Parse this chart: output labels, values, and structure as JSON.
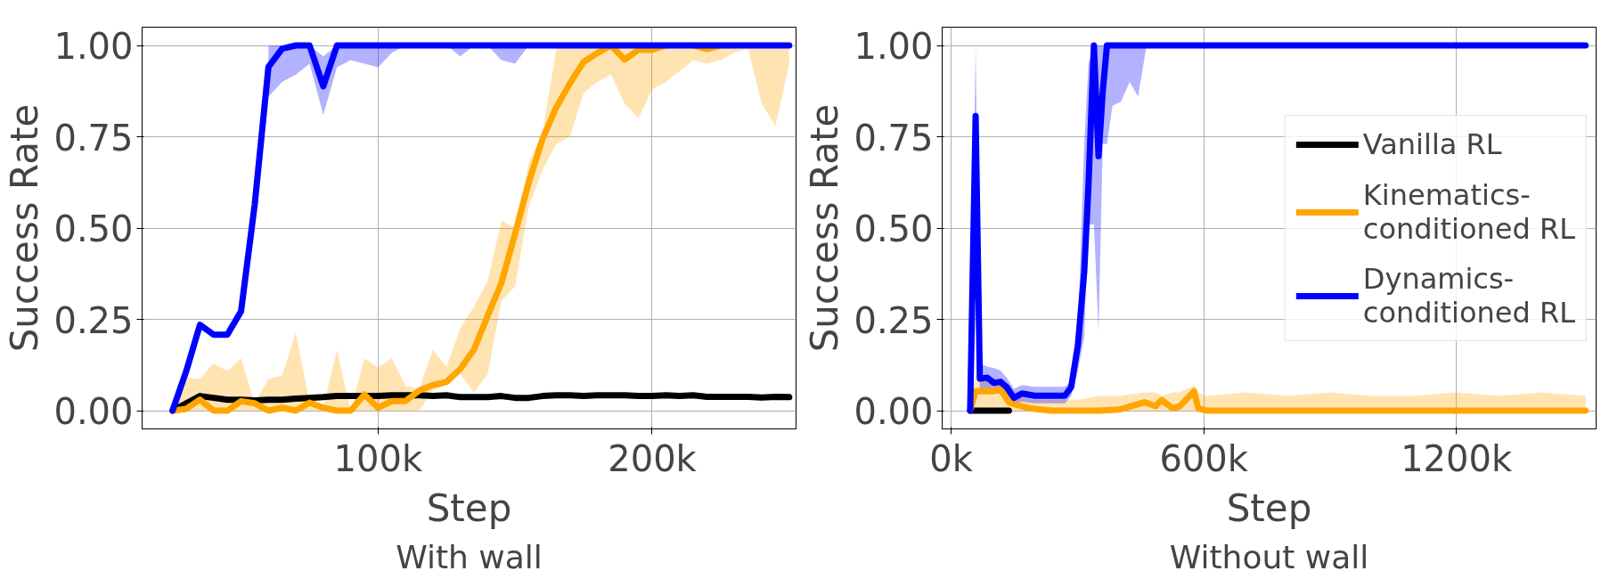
{
  "chart_data": [
    {
      "type": "line",
      "title": "With wall",
      "xlabel": "Step",
      "ylabel": "Success Rate",
      "grid": true,
      "legend": false,
      "xlim": [
        13900,
        252500
      ],
      "ylim": [
        -0.05,
        1.05
      ],
      "xticks": [
        {
          "value": 100000,
          "label": "100k"
        },
        {
          "value": 200000,
          "label": "200k"
        }
      ],
      "yticks": [
        {
          "value": 0,
          "label": "0.00"
        },
        {
          "value": 0.25,
          "label": "0.25"
        },
        {
          "value": 0.5,
          "label": "0.50"
        },
        {
          "value": 0.75,
          "label": "0.75"
        },
        {
          "value": 1,
          "label": "1.00"
        }
      ],
      "x": [
        25000,
        30000,
        35000,
        40000,
        45000,
        50000,
        55000,
        60000,
        65000,
        70000,
        75000,
        80000,
        85000,
        90000,
        95000,
        100000,
        105000,
        110000,
        115000,
        120000,
        125000,
        130000,
        135000,
        140000,
        145000,
        150000,
        155000,
        160000,
        165000,
        170000,
        175000,
        180000,
        185000,
        190000,
        195000,
        200000,
        205000,
        210000,
        215000,
        220000,
        225000,
        230000,
        235000,
        240000,
        245000,
        250000
      ],
      "series": [
        {
          "color": "#000000",
          "values": [
            0,
            0.02,
            0.04,
            0.035,
            0.03,
            0.03,
            0.028,
            0.03,
            0.03,
            0.033,
            0.035,
            0.037,
            0.04,
            0.04,
            0.04,
            0.04,
            0.042,
            0.042,
            0.042,
            0.04,
            0.042,
            0.037,
            0.037,
            0.037,
            0.04,
            0.035,
            0.035,
            0.04,
            0.042,
            0.042,
            0.04,
            0.042,
            0.042,
            0.042,
            0.04,
            0.04,
            0.042,
            0.04,
            0.042,
            0.038,
            0.038,
            0.038,
            0.038,
            0.036,
            0.038,
            0.037
          ]
        },
        {
          "color": "#ffa500",
          "values": [
            0,
            0.005,
            0.03,
            0,
            0,
            0.026,
            0.02,
            0,
            0.008,
            0,
            0.022,
            0.008,
            0,
            0,
            0.044,
            0.008,
            0.026,
            0.026,
            0.055,
            0.07,
            0.079,
            0.114,
            0.167,
            0.26,
            0.35,
            0.485,
            0.626,
            0.744,
            0.83,
            0.896,
            0.955,
            0.979,
            1,
            0.961,
            0.988,
            0.988,
            1,
            null,
            1,
            0.99,
            1,
            null,
            null,
            null,
            null,
            null
          ],
          "lower": [
            0,
            0,
            0,
            0,
            0,
            0,
            0,
            0,
            0,
            0,
            0,
            0,
            0,
            0,
            0,
            0,
            0,
            0,
            0,
            0.055,
            0.07,
            0.1,
            0.05,
            0.1,
            0.3,
            0.34,
            0.56,
            0.66,
            0.73,
            0.75,
            0.87,
            0.9,
            0.92,
            0.84,
            0.8,
            0.88,
            0.9,
            0.93,
            0.96,
            0.95,
            0.96,
            0.98,
            0.99,
            0.84,
            0.78,
            0.95
          ],
          "upper": [
            0,
            0.09,
            0.087,
            0.13,
            0.108,
            0.143,
            0.02,
            0.087,
            0.096,
            0.214,
            0.022,
            0.008,
            0.167,
            0,
            0.143,
            0.118,
            0.143,
            0.067,
            0.061,
            0.167,
            0.12,
            0.226,
            0.285,
            0.355,
            0.52,
            0.5,
            0.68,
            0.76,
            0.99,
            1,
            1,
            1,
            1,
            1,
            1,
            1,
            1,
            1,
            1,
            1,
            1,
            1,
            1,
            1,
            1,
            1
          ]
        },
        {
          "color": "#0000ff",
          "values": [
            0,
            0.108,
            0.235,
            0.208,
            0.208,
            0.272,
            0.565,
            0.941,
            0.991,
            1,
            1,
            0.888,
            1,
            1,
            1,
            1,
            1,
            1,
            1,
            1,
            1,
            1,
            1,
            1,
            1,
            1,
            1,
            1,
            1,
            1,
            1,
            1,
            1,
            1,
            1,
            1,
            1,
            1,
            1,
            1,
            1,
            1,
            1,
            1,
            1,
            1
          ],
          "lower": [
            null,
            null,
            null,
            null,
            null,
            null,
            null,
            0.86,
            0.9,
            0.92,
            0.95,
            0.81,
            0.94,
            0.96,
            0.95,
            0.94,
            0.98,
            1,
            1,
            1,
            1,
            0.97,
            1,
            1,
            0.96,
            0.95,
            1,
            1,
            1,
            1,
            1,
            1,
            1,
            1,
            1,
            1,
            1,
            1,
            1,
            1,
            1,
            1,
            1,
            1,
            1,
            1
          ],
          "upper": [
            null,
            null,
            null,
            null,
            null,
            null,
            null,
            1,
            1,
            1,
            1,
            0.97,
            1,
            1,
            1,
            1,
            1,
            1,
            1,
            1,
            1,
            1,
            1,
            1,
            1,
            1,
            1,
            1,
            1,
            1,
            1,
            1,
            1,
            1,
            1,
            1,
            1,
            1,
            1,
            1,
            1,
            1,
            1,
            1,
            1,
            1
          ]
        }
      ]
    },
    {
      "type": "line",
      "title": "Without wall",
      "xlabel": "Step",
      "ylabel": "Success Rate",
      "grid": true,
      "legend": "center right",
      "xlim": [
        -21500,
        1532000
      ],
      "ylim": [
        -0.05,
        1.05
      ],
      "xticks": [
        {
          "value": 0,
          "label": "0k"
        },
        {
          "value": 600000,
          "label": "600k"
        },
        {
          "value": 1200000,
          "label": "1200k"
        }
      ],
      "yticks": [
        {
          "value": 0,
          "label": "0.00"
        },
        {
          "value": 0.25,
          "label": "0.25"
        },
        {
          "value": 0.5,
          "label": "0.50"
        },
        {
          "value": 0.75,
          "label": "0.75"
        },
        {
          "value": 1,
          "label": "1.00"
        }
      ],
      "series": [
        {
          "name": "Vanilla RL",
          "color": "#000000",
          "x": [
            45000,
            137000
          ],
          "values": [
            0,
            0
          ]
        },
        {
          "name": "Kinematics-\nconditioned RL",
          "color": "#ffa500",
          "x": [
            45000,
            58000,
            76000,
            101000,
            117000,
            137000,
            158000,
            188000,
            239000,
            300000,
            350000,
            400000,
            459000,
            485000,
            500000,
            526000,
            543000,
            577000,
            587000,
            607000,
            700000,
            800000,
            900000,
            1000000,
            1100000,
            1200000,
            1300000,
            1400000,
            1507000
          ],
          "values": [
            0,
            0.053,
            0.053,
            0.053,
            0.059,
            0.023,
            0.015,
            0.006,
            0,
            0,
            0,
            0.003,
            0.023,
            0.012,
            0.029,
            0.006,
            0.012,
            0.053,
            0.006,
            0,
            0,
            0,
            0,
            0,
            0,
            0,
            0,
            0,
            0
          ],
          "lower": [
            0,
            0,
            0,
            0,
            0,
            0,
            0,
            0,
            0,
            0,
            0,
            0,
            0,
            0,
            0,
            0,
            0,
            0,
            0,
            0,
            0,
            0,
            0,
            0,
            0,
            0,
            0,
            0,
            0
          ],
          "upper": [
            0,
            0.1,
            0.09,
            0.09,
            0.08,
            0.05,
            0.04,
            0.03,
            0.03,
            0.03,
            0.04,
            0.04,
            0.05,
            0.05,
            0.04,
            0.05,
            0.05,
            0.07,
            0.05,
            0.04,
            0.05,
            0.04,
            0.05,
            0.04,
            0.04,
            0.05,
            0.04,
            0.05,
            0.04
          ]
        },
        {
          "name": "Dynamics-\nconditioned RL",
          "color": "#0000ff",
          "x": [
            45000,
            58000,
            68000,
            86000,
            101000,
            117000,
            132000,
            149000,
            168000,
            198000,
            239000,
            270000,
            285000,
            301000,
            316000,
            326000,
            339000,
            350000,
            360000,
            370000,
            383000,
            403000,
            424000,
            444000,
            464000,
            1507000
          ],
          "values": [
            0,
            0.807,
            0.088,
            0.09,
            0.076,
            0.079,
            0.064,
            0.035,
            0.047,
            0.041,
            0.041,
            0.041,
            0.064,
            0.18,
            0.38,
            0.615,
            1,
            0.697,
            0.874,
            1,
            1,
            1,
            1,
            1,
            1,
            1
          ],
          "lower": [
            0,
            0.6,
            0.053,
            0.06,
            0.053,
            0.05,
            0.04,
            0.018,
            0.025,
            0.02,
            0.02,
            0.02,
            0.04,
            0.11,
            0.2,
            0.51,
            0.51,
            0.217,
            0.73,
            0.73,
            0.835,
            0.846,
            0.9,
            0.86,
            1,
            1
          ],
          "upper": [
            0,
            1,
            0.13,
            0.12,
            0.117,
            0.11,
            0.09,
            0.06,
            0.07,
            0.065,
            0.065,
            0.065,
            0.08,
            0.217,
            0.73,
            0.95,
            1,
            1,
            1,
            1,
            1,
            1,
            1,
            1,
            1,
            1
          ]
        }
      ]
    }
  ]
}
